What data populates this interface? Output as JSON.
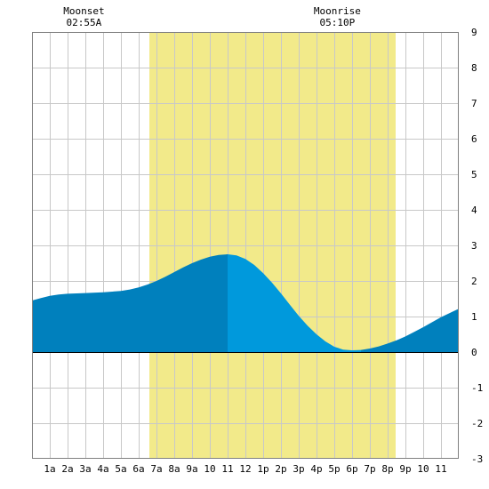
{
  "chart_data": {
    "type": "area",
    "x_range": [
      0,
      24
    ],
    "ylim": [
      -3,
      9
    ],
    "y_ticks": [
      "9",
      "8",
      "7",
      "6",
      "5",
      "4",
      "3",
      "2",
      "1",
      "0",
      "-1",
      "-2",
      "-3"
    ],
    "x_tick_labels": [
      "1a",
      "2a",
      "3a",
      "4a",
      "5a",
      "6a",
      "7a",
      "8a",
      "9a",
      "10",
      "11",
      "12",
      "1p",
      "2p",
      "3p",
      "4p",
      "5p",
      "6p",
      "7p",
      "8p",
      "9p",
      "10",
      "11"
    ],
    "grid": true,
    "daylight": {
      "start": 6.6,
      "end": 20.45
    },
    "moon_events": [
      {
        "label": "Moonset",
        "time": "02:55A",
        "hour": 2.92
      },
      {
        "label": "Moonrise",
        "time": "05:10P",
        "hour": 17.17
      }
    ],
    "series": [
      {
        "points": [
          [
            0,
            1.45
          ],
          [
            0.5,
            1.52
          ],
          [
            1,
            1.58
          ],
          [
            1.5,
            1.62
          ],
          [
            2,
            1.64
          ],
          [
            3,
            1.66
          ],
          [
            4,
            1.68
          ],
          [
            5,
            1.72
          ],
          [
            5.5,
            1.76
          ],
          [
            6,
            1.82
          ],
          [
            6.5,
            1.9
          ],
          [
            7,
            2.0
          ],
          [
            7.5,
            2.12
          ],
          [
            8,
            2.25
          ],
          [
            8.5,
            2.38
          ],
          [
            9,
            2.5
          ],
          [
            9.5,
            2.6
          ],
          [
            10,
            2.68
          ],
          [
            10.5,
            2.73
          ],
          [
            11,
            2.75
          ]
        ]
      },
      {
        "points": [
          [
            11,
            2.75
          ],
          [
            11.5,
            2.72
          ],
          [
            12,
            2.62
          ],
          [
            12.5,
            2.45
          ],
          [
            13,
            2.22
          ],
          [
            13.5,
            1.95
          ],
          [
            14,
            1.65
          ],
          [
            14.5,
            1.33
          ],
          [
            15,
            1.02
          ],
          [
            15.5,
            0.74
          ],
          [
            16,
            0.5
          ],
          [
            16.5,
            0.3
          ],
          [
            17,
            0.15
          ],
          [
            17.5,
            0.07
          ],
          [
            18,
            0.05
          ],
          [
            18.5,
            0.06
          ]
        ]
      },
      {
        "points": [
          [
            18.5,
            0.06
          ],
          [
            19,
            0.1
          ],
          [
            19.5,
            0.16
          ],
          [
            20,
            0.24
          ],
          [
            20.5,
            0.33
          ],
          [
            21,
            0.44
          ],
          [
            21.5,
            0.57
          ],
          [
            22,
            0.7
          ],
          [
            22.5,
            0.84
          ],
          [
            23,
            0.98
          ],
          [
            23.5,
            1.1
          ],
          [
            24,
            1.22
          ]
        ]
      }
    ],
    "colors": {
      "daylight": "#f2ea8a",
      "grid": "#c8c8c8",
      "frame": "#808080",
      "series": [
        "#0080bd",
        "#0099dc",
        "#0080bd"
      ]
    }
  }
}
